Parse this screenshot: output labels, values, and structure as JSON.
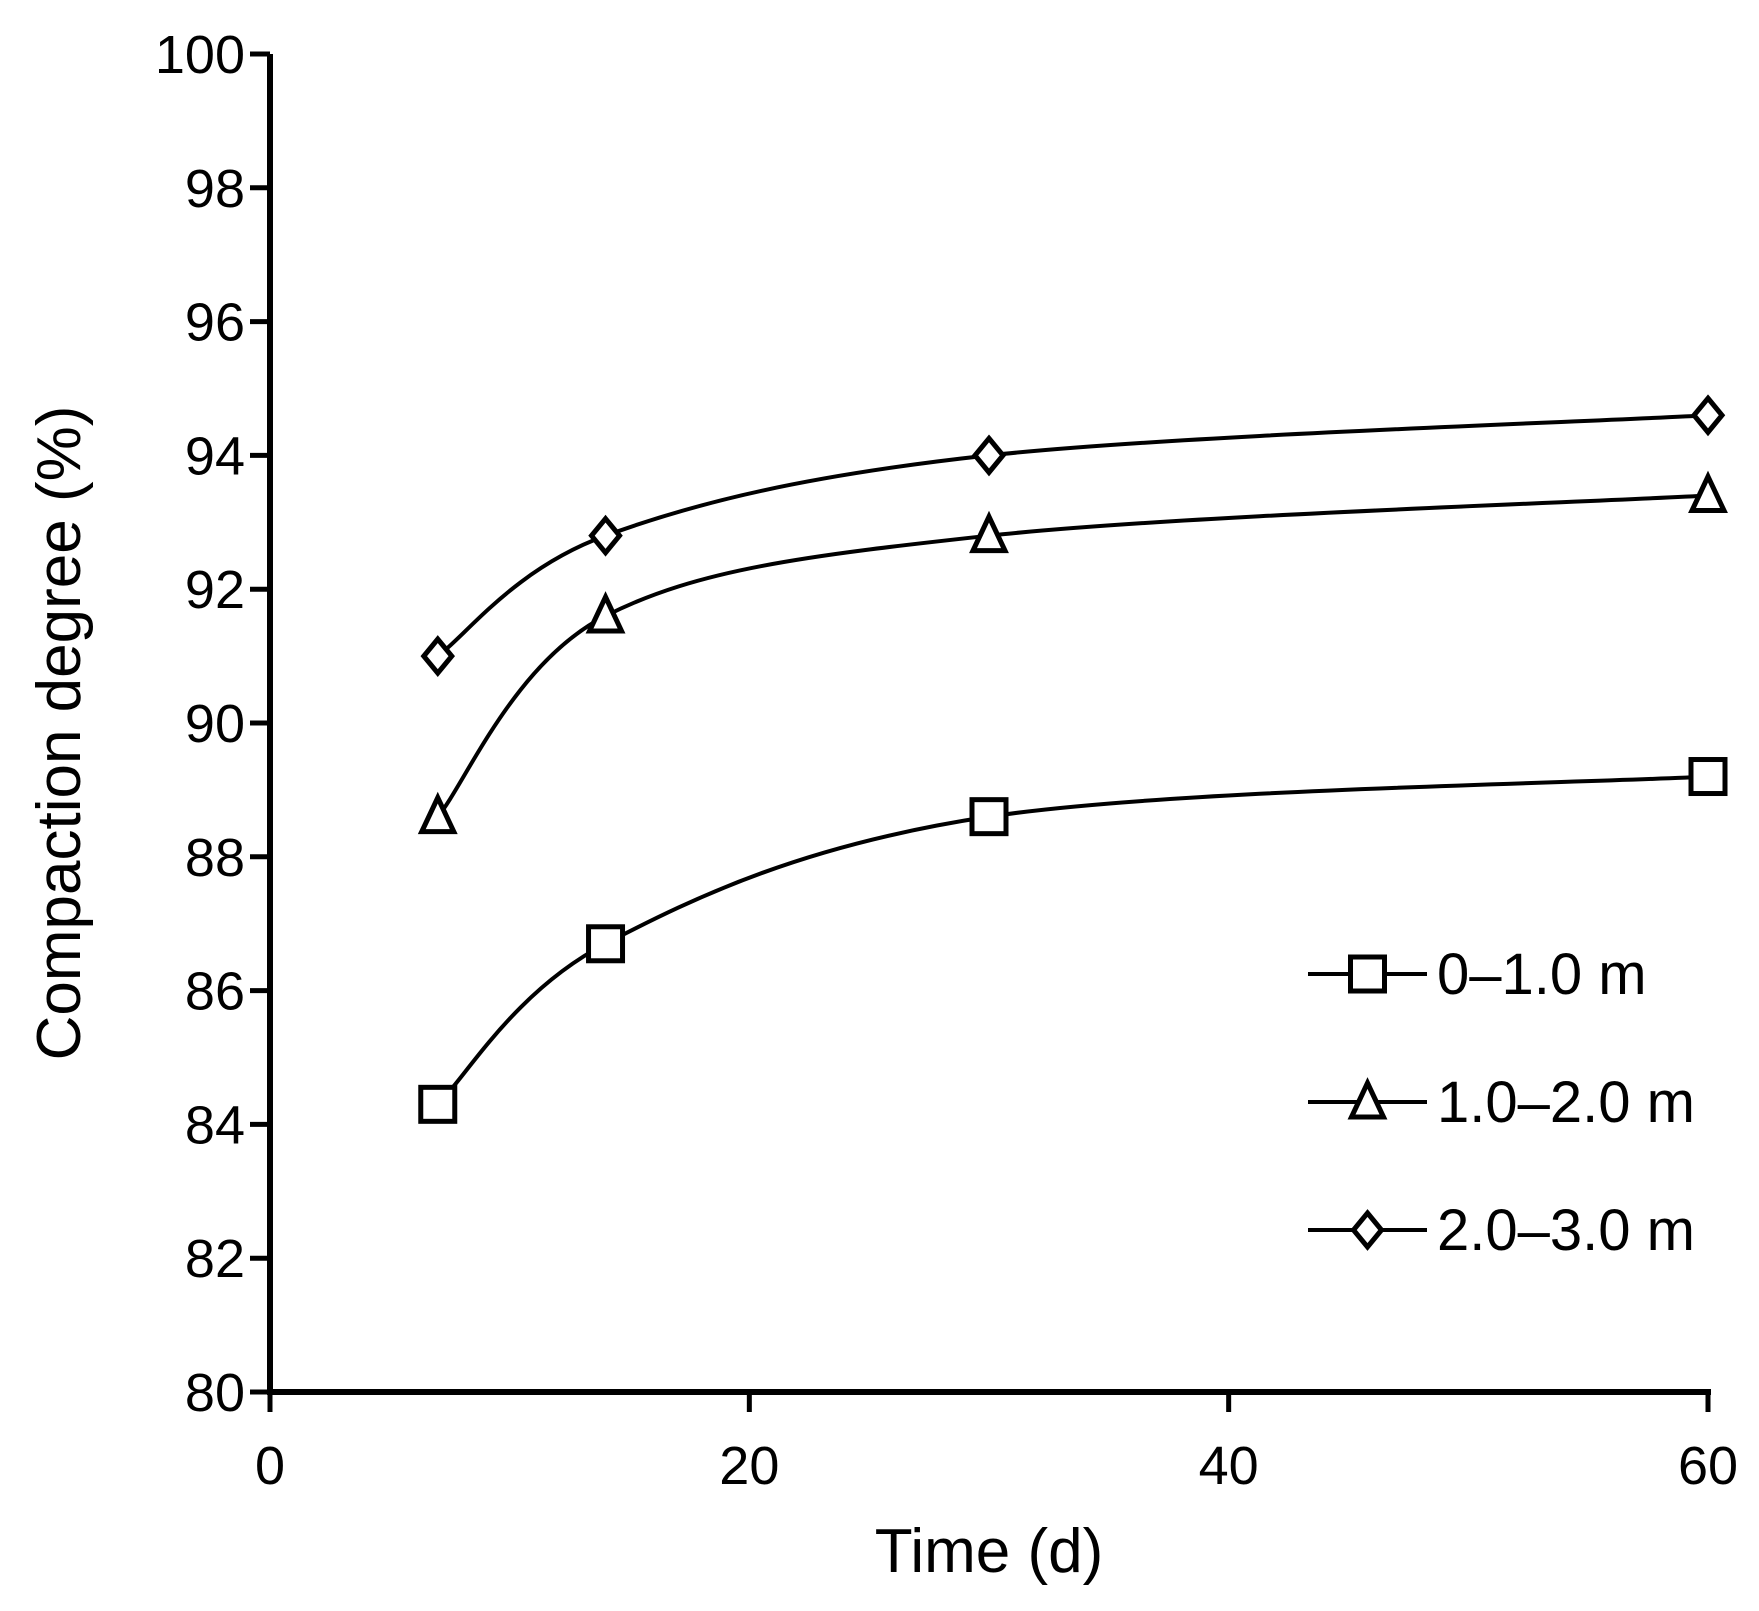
{
  "chart_data": {
    "type": "line",
    "title": "",
    "xlabel": "Time (d)",
    "ylabel": "Compaction degree (%)",
    "xlim": [
      0,
      60
    ],
    "ylim": [
      80,
      100
    ],
    "xticks": [
      0,
      20,
      40,
      60
    ],
    "yticks": [
      80,
      82,
      84,
      86,
      88,
      90,
      92,
      94,
      96,
      98,
      100
    ],
    "grid": false,
    "legend_position": "bottom-right",
    "smooth": true,
    "series": [
      {
        "name": "0–1.0 m",
        "marker": "square",
        "x": [
          7,
          14,
          30,
          60
        ],
        "y": [
          84.3,
          86.7,
          88.6,
          89.2
        ]
      },
      {
        "name": "1.0–2.0 m",
        "marker": "triangle",
        "x": [
          7,
          14,
          30,
          60
        ],
        "y": [
          88.6,
          91.6,
          92.8,
          93.4
        ]
      },
      {
        "name": "2.0–3.0 m",
        "marker": "diamond",
        "x": [
          7,
          14,
          30,
          60
        ],
        "y": [
          91.0,
          92.8,
          94.0,
          94.6
        ]
      }
    ],
    "colors": {
      "line": "#000000",
      "marker_fill": "#ffffff",
      "background": "#ffffff"
    }
  }
}
